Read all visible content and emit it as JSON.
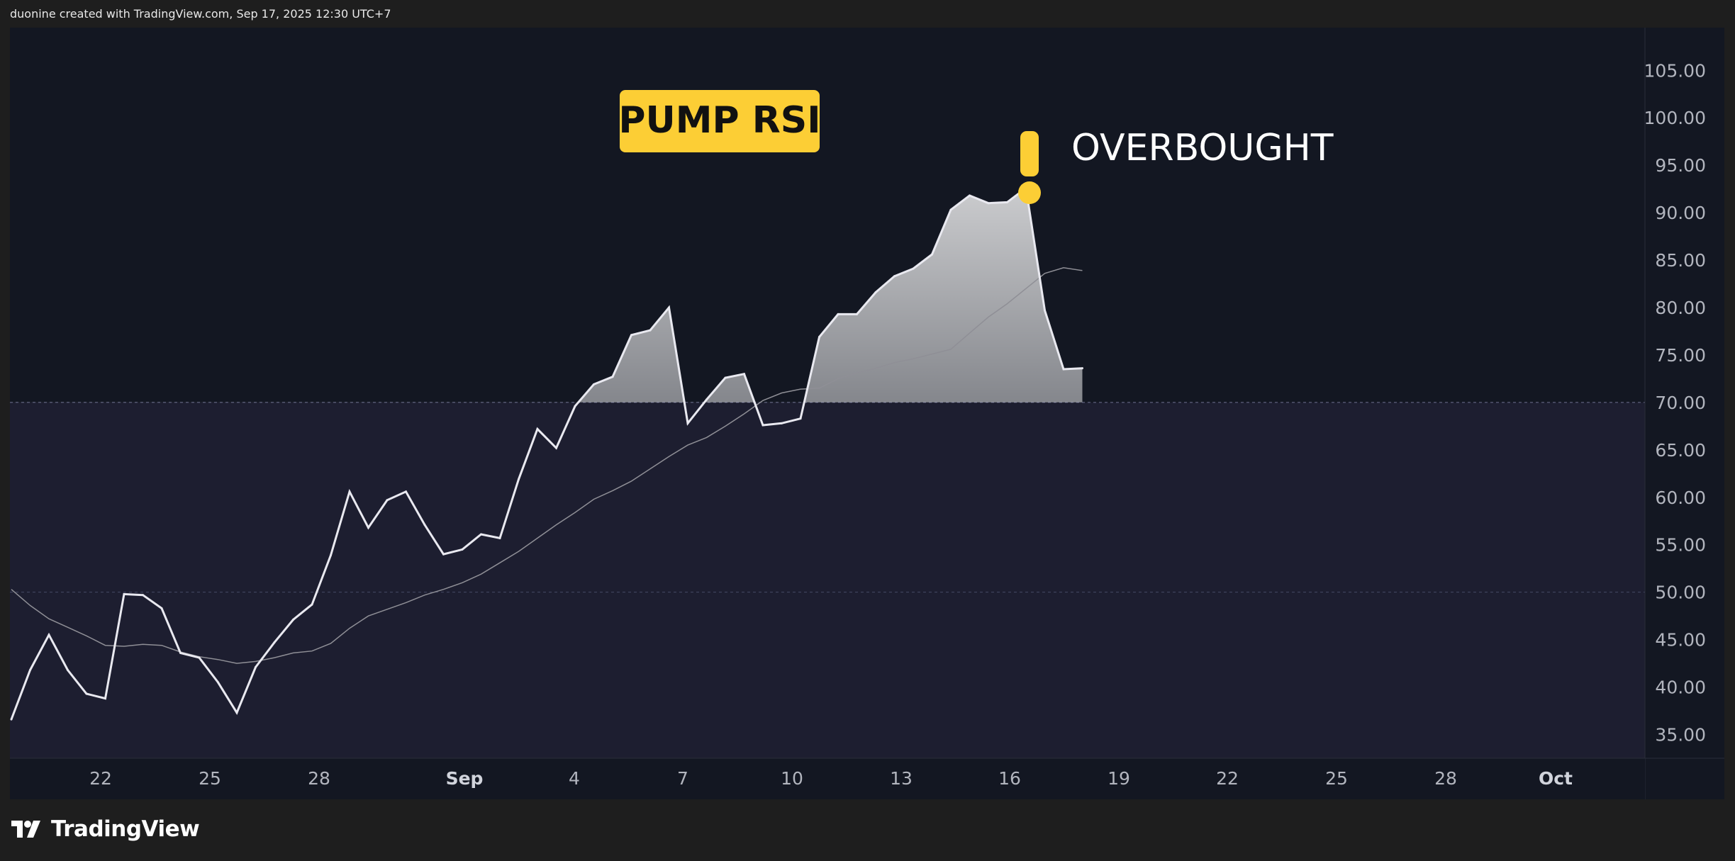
{
  "header": {
    "credit": "duonine created with TradingView.com, Sep 17, 2025 12:30 UTC+7"
  },
  "footer": {
    "brand": "TradingView",
    "logo_icon": "tradingview-logo-icon"
  },
  "annotations": {
    "badge_text": "PUMP RSI",
    "badge_color": "#fcce35",
    "alert_text": "OVERBOUGHT",
    "alert_icon": "exclamation-icon"
  },
  "colors": {
    "background": "#131722",
    "lower_zone": "#1d1e30",
    "line": "#e9e9f0",
    "ma_line": "#8f8f96",
    "axis_text": "#b2b5be"
  },
  "chart_data": {
    "type": "line",
    "title": "",
    "xlabel": "",
    "ylabel": "",
    "ylim": [
      32.5,
      109.5
    ],
    "y_ticks": [
      "105.00",
      "100.00",
      "95.00",
      "90.00",
      "85.00",
      "80.00",
      "75.00",
      "70.00",
      "65.00",
      "60.00",
      "55.00",
      "50.00",
      "45.00",
      "40.00",
      "35.00"
    ],
    "x_ticks": [
      "22",
      "25",
      "28",
      "Sep",
      "4",
      "7",
      "10",
      "13",
      "16",
      "19",
      "22",
      "25",
      "28",
      "Oct"
    ],
    "reference_lines": [
      70,
      50
    ],
    "overbought_level": 70,
    "series": [
      {
        "values": [
          36.6,
          41.8,
          45.5,
          41.8,
          39.3,
          38.8,
          49.8,
          49.7,
          48.3,
          43.6,
          43.1,
          40.5,
          37.3,
          42.1,
          44.7,
          47.1,
          48.7,
          53.9,
          60.6,
          56.8,
          59.7,
          60.6,
          57.1,
          54.0,
          54.5,
          56.1,
          55.7,
          61.9,
          67.2,
          65.2,
          69.6,
          71.9,
          72.7,
          77.1,
          77.6,
          80.0,
          67.8,
          70.3,
          72.6,
          73.0,
          67.6,
          67.8,
          68.3,
          76.9,
          79.3,
          79.3,
          81.6,
          83.3,
          84.1,
          85.6,
          90.3,
          91.8,
          91.0,
          91.1,
          92.6,
          79.7,
          73.5,
          73.6
        ]
      },
      {
        "values": [
          50.3,
          48.6,
          47.2,
          46.3,
          45.4,
          44.4,
          44.3,
          44.5,
          44.4,
          43.7,
          43.2,
          42.9,
          42.5,
          42.7,
          43.1,
          43.6,
          43.8,
          44.6,
          46.2,
          47.5,
          48.2,
          48.9,
          49.7,
          50.3,
          51.0,
          51.9,
          53.1,
          54.3,
          55.7,
          57.1,
          58.4,
          59.8,
          60.7,
          61.7,
          63.0,
          64.3,
          65.5,
          66.3,
          67.5,
          68.8,
          70.2,
          71.0,
          71.4,
          71.5,
          72.5,
          73.1,
          73.6,
          74.2,
          74.6,
          75.1,
          75.6,
          77.3,
          79.0,
          80.4,
          82.0,
          83.6,
          84.2,
          83.9
        ]
      }
    ]
  }
}
